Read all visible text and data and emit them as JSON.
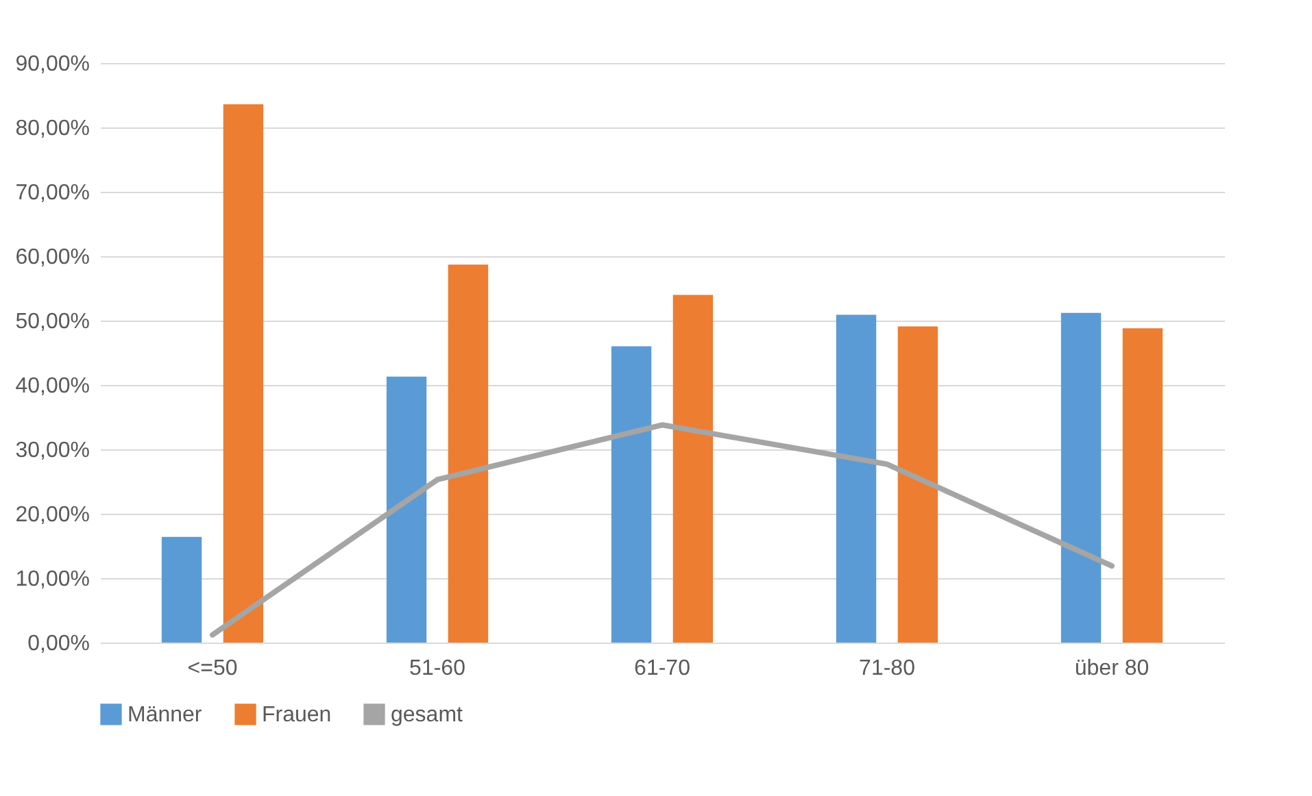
{
  "chart_data": {
    "type": "bar",
    "categories": [
      "<=50",
      "51-60",
      "61-70",
      "71-80",
      "über 80"
    ],
    "series": [
      {
        "name": "Männer",
        "color": "#5b9bd5",
        "values": [
          16.4,
          41.3,
          46.0,
          50.9,
          51.2
        ]
      },
      {
        "name": "Frauen",
        "color": "#ed7d31",
        "values": [
          83.6,
          58.7,
          54.0,
          49.1,
          48.8
        ]
      },
      {
        "name": "gesamt",
        "type": "line",
        "color": "#a5a5a5",
        "values": [
          1.2,
          25.3,
          33.8,
          27.7,
          11.9
        ]
      }
    ],
    "ylim": [
      0,
      90
    ],
    "yticks": [
      {
        "value": 0,
        "label": "0,00%"
      },
      {
        "value": 10,
        "label": "10,00%"
      },
      {
        "value": 20,
        "label": "20,00%"
      },
      {
        "value": 30,
        "label": "30,00%"
      },
      {
        "value": 40,
        "label": "40,00%"
      },
      {
        "value": 50,
        "label": "50,00%"
      },
      {
        "value": 60,
        "label": "60,00%"
      },
      {
        "value": 70,
        "label": "70,00%"
      },
      {
        "value": 80,
        "label": "80,00%"
      },
      {
        "value": 90,
        "label": "90,00%"
      }
    ],
    "grid": "y",
    "legend": "bottom"
  }
}
